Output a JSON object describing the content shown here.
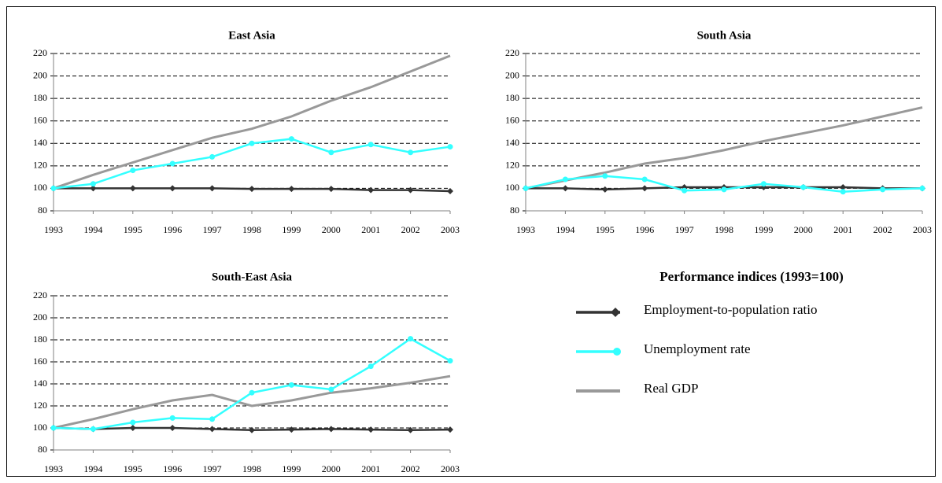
{
  "legend_title": "Performance indices (1993=100)",
  "chart_data": [
    {
      "type": "line",
      "title": "East Asia",
      "categories": [
        "1993",
        "1994",
        "1995",
        "1996",
        "1997",
        "1998",
        "1999",
        "2000",
        "2001",
        "2002",
        "2003"
      ],
      "series": [
        {
          "name": "Employment-to-population ratio",
          "color": "#333333",
          "marker": "diamond",
          "values": [
            100,
            100,
            100,
            100,
            100,
            99.5,
            99.5,
            99.5,
            98.5,
            98.5,
            97.5
          ]
        },
        {
          "name": "Unemployment rate",
          "color": "#33ffff",
          "marker": "circle",
          "values": [
            100,
            104,
            116,
            122,
            128,
            140,
            144,
            132,
            139,
            132,
            137
          ]
        },
        {
          "name": "Real GDP",
          "color": "#999999",
          "marker": "none",
          "values": [
            100,
            112,
            123,
            134,
            145,
            153,
            164,
            178,
            190,
            204,
            218
          ]
        }
      ],
      "ylim": [
        80,
        220
      ],
      "yticks": [
        80,
        100,
        120,
        140,
        160,
        180,
        200,
        220
      ],
      "grid": true
    },
    {
      "type": "line",
      "title": "South Asia",
      "categories": [
        "1993",
        "1994",
        "1995",
        "1996",
        "1997",
        "1998",
        "1999",
        "2000",
        "2001",
        "2002",
        "2003"
      ],
      "series": [
        {
          "name": "Employment-to-population ratio",
          "color": "#333333",
          "marker": "diamond",
          "values": [
            100,
            100,
            99,
            100,
            101,
            101,
            101,
            101,
            101,
            100,
            100
          ]
        },
        {
          "name": "Unemployment rate",
          "color": "#33ffff",
          "marker": "circle",
          "values": [
            100,
            108,
            111,
            108,
            98,
            99,
            104,
            101,
            97,
            99,
            100
          ]
        },
        {
          "name": "Real GDP",
          "color": "#999999",
          "marker": "none",
          "values": [
            100,
            107,
            114,
            122,
            127,
            134,
            142,
            149,
            156,
            164,
            172
          ]
        }
      ],
      "ylim": [
        80,
        220
      ],
      "yticks": [
        80,
        100,
        120,
        140,
        160,
        180,
        200,
        220
      ],
      "grid": true
    },
    {
      "type": "line",
      "title": "South-East Asia",
      "categories": [
        "1993",
        "1994",
        "1995",
        "1996",
        "1997",
        "1998",
        "1999",
        "2000",
        "2001",
        "2002",
        "2003"
      ],
      "series": [
        {
          "name": "Employment-to-population ratio",
          "color": "#333333",
          "marker": "diamond",
          "values": [
            100,
            99,
            100,
            100,
            99,
            98,
            98.5,
            99,
            98.5,
            98,
            98.5
          ]
        },
        {
          "name": "Unemployment rate",
          "color": "#33ffff",
          "marker": "circle",
          "values": [
            100,
            99,
            105,
            109,
            108,
            132,
            139,
            135,
            156,
            181,
            161
          ]
        },
        {
          "name": "Real GDP",
          "color": "#999999",
          "marker": "none",
          "values": [
            100,
            108,
            117,
            125,
            130,
            120,
            125,
            132,
            136,
            141,
            147
          ]
        }
      ],
      "ylim": [
        80,
        220
      ],
      "yticks": [
        80,
        100,
        120,
        140,
        160,
        180,
        200,
        220
      ],
      "grid": true
    }
  ]
}
